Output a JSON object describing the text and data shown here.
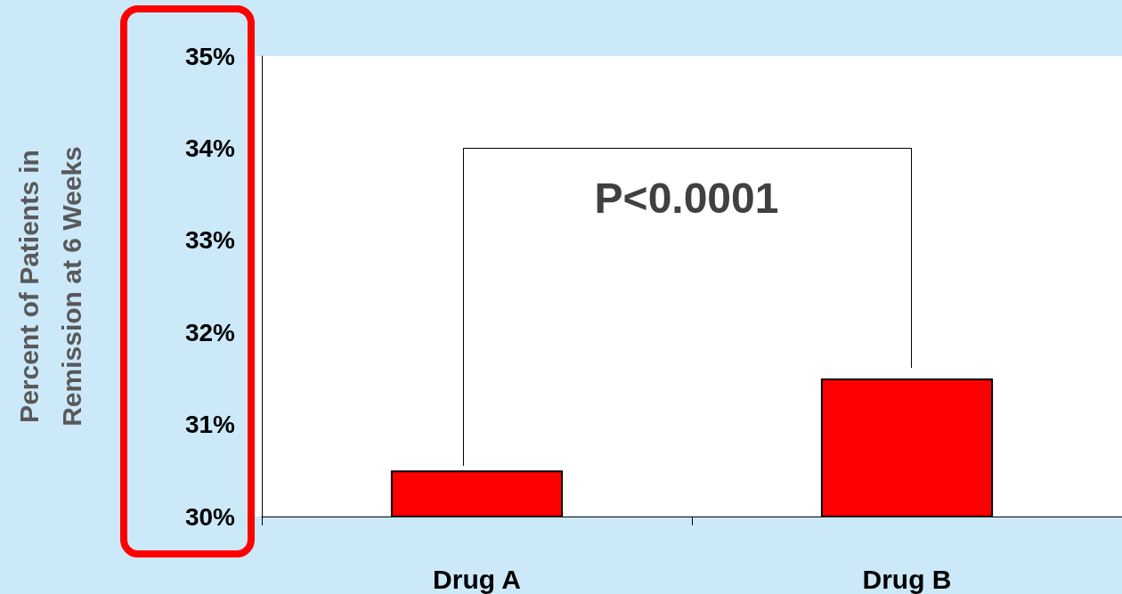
{
  "chart_data": {
    "type": "bar",
    "ylabel": "Percent of Patients in\nRemission at 6 Weeks",
    "categories": [
      "Drug A",
      "Drug B"
    ],
    "values": [
      30.5,
      31.5
    ],
    "color": "#ff0000",
    "ylim": [
      30,
      35
    ],
    "yticks": [
      {
        "value": 30,
        "label": "30%"
      },
      {
        "value": 31,
        "label": "31%"
      },
      {
        "value": 32,
        "label": "32%"
      },
      {
        "value": 33,
        "label": "33%"
      },
      {
        "value": 34,
        "label": "34%"
      },
      {
        "value": 35,
        "label": "35%"
      }
    ],
    "grid": false,
    "annotations": [
      "P<0.0001"
    ]
  }
}
